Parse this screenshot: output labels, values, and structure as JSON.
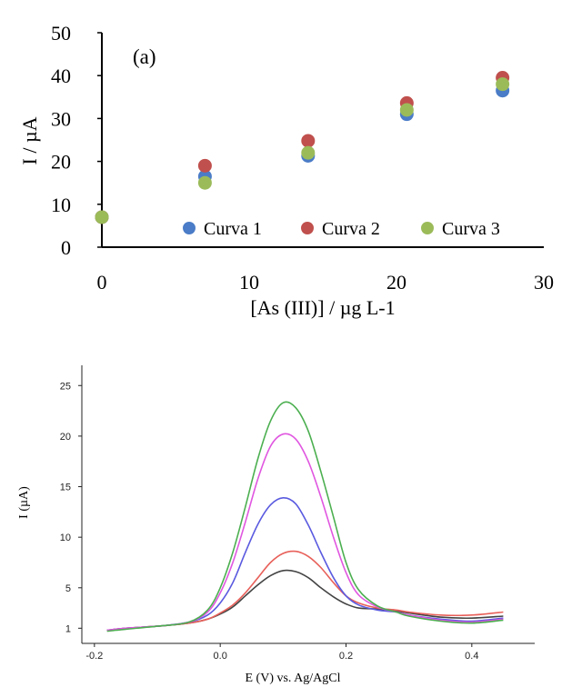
{
  "chart_data": [
    {
      "type": "scatter",
      "panel_label": "(a)",
      "xlabel": "[As (III)] / µg L-1",
      "ylabel": "I / µA",
      "xlim": [
        0,
        30
      ],
      "ylim": [
        0,
        50
      ],
      "x_ticks": [
        "0",
        "10",
        "20",
        "30"
      ],
      "y_ticks": [
        "0",
        "10",
        "20",
        "30",
        "40",
        "50"
      ],
      "legend_position": "bottom-right",
      "x": [
        0,
        7,
        14,
        20.7,
        27.2
      ],
      "series": [
        {
          "name": "Curva 1",
          "color": "#4a7cc7",
          "values": [
            7,
            16.5,
            21.3,
            31,
            36.5
          ]
        },
        {
          "name": "Curva 2",
          "color": "#c0504d",
          "values": [
            7,
            19,
            24.8,
            33.6,
            39.5
          ]
        },
        {
          "name": "Curva 3",
          "color": "#9bbb59",
          "values": [
            7,
            15,
            22,
            32,
            38
          ]
        }
      ]
    },
    {
      "type": "line",
      "xlabel": "E (V) vs. Ag/AgCl",
      "ylabel": "I (µA)",
      "xlim": [
        -0.22,
        0.5
      ],
      "ylim": [
        -0.5,
        27
      ],
      "x_ticks": [
        "-0.2",
        "0.0",
        "0.2",
        "0.4"
      ],
      "y_ticks": [
        "1",
        "5",
        "10",
        "15",
        "20",
        "25"
      ],
      "grid": false,
      "series": [
        {
          "name": "black",
          "color": "#444444",
          "x": [
            -0.18,
            -0.15,
            -0.1,
            -0.05,
            -0.02,
            0.0,
            0.02,
            0.04,
            0.06,
            0.08,
            0.1,
            0.12,
            0.14,
            0.16,
            0.18,
            0.2,
            0.22,
            0.25,
            0.28,
            0.3,
            0.35,
            0.4,
            0.45
          ],
          "values": [
            0.8,
            1.0,
            1.2,
            1.5,
            1.9,
            2.4,
            3.1,
            4.2,
            5.3,
            6.2,
            6.7,
            6.6,
            6.0,
            5.0,
            4.1,
            3.4,
            3.0,
            2.9,
            2.7,
            2.5,
            2.1,
            2.0,
            2.2
          ]
        },
        {
          "name": "red",
          "color": "#e8605a",
          "x": [
            -0.18,
            -0.15,
            -0.1,
            -0.05,
            -0.02,
            0.0,
            0.02,
            0.04,
            0.06,
            0.08,
            0.1,
            0.12,
            0.14,
            0.16,
            0.18,
            0.2,
            0.22,
            0.25,
            0.28,
            0.3,
            0.35,
            0.4,
            0.45
          ],
          "values": [
            0.8,
            1.0,
            1.2,
            1.5,
            1.9,
            2.5,
            3.3,
            4.5,
            6.0,
            7.5,
            8.4,
            8.6,
            8.1,
            7.0,
            5.5,
            4.2,
            3.5,
            3.0,
            2.8,
            2.6,
            2.3,
            2.3,
            2.6
          ]
        },
        {
          "name": "blue",
          "color": "#5a5ae0",
          "x": [
            -0.18,
            -0.15,
            -0.1,
            -0.05,
            -0.02,
            0.0,
            0.02,
            0.04,
            0.06,
            0.08,
            0.1,
            0.12,
            0.14,
            0.16,
            0.18,
            0.2,
            0.22,
            0.25,
            0.28,
            0.3,
            0.35,
            0.4,
            0.45
          ],
          "values": [
            0.8,
            1.0,
            1.2,
            1.6,
            2.3,
            3.5,
            5.5,
            8.5,
            11.3,
            13.2,
            13.9,
            13.3,
            11.2,
            8.5,
            6.0,
            4.2,
            3.3,
            2.8,
            2.6,
            2.3,
            1.9,
            1.7,
            2.0
          ]
        },
        {
          "name": "magenta",
          "color": "#e056e0",
          "x": [
            -0.18,
            -0.15,
            -0.1,
            -0.05,
            -0.02,
            0.0,
            0.02,
            0.04,
            0.06,
            0.08,
            0.1,
            0.12,
            0.14,
            0.16,
            0.18,
            0.2,
            0.22,
            0.25,
            0.28,
            0.3,
            0.35,
            0.4,
            0.45
          ],
          "values": [
            0.8,
            1.0,
            1.2,
            1.6,
            2.6,
            4.5,
            7.5,
            11.5,
            15.8,
            19.0,
            20.2,
            19.7,
            17.5,
            14.0,
            10.0,
            6.5,
            4.3,
            3.1,
            2.6,
            2.3,
            1.8,
            1.6,
            1.9
          ]
        },
        {
          "name": "green",
          "color": "#4caf50",
          "x": [
            -0.18,
            -0.15,
            -0.1,
            -0.05,
            -0.02,
            0.0,
            0.02,
            0.04,
            0.06,
            0.08,
            0.1,
            0.12,
            0.14,
            0.16,
            0.18,
            0.2,
            0.22,
            0.25,
            0.28,
            0.3,
            0.35,
            0.4,
            0.45
          ],
          "values": [
            0.7,
            0.9,
            1.2,
            1.6,
            2.8,
            5.0,
            8.5,
            13.0,
            17.8,
            21.5,
            23.3,
            22.8,
            20.5,
            16.5,
            12.0,
            7.5,
            4.8,
            3.2,
            2.6,
            2.2,
            1.7,
            1.5,
            1.8
          ]
        }
      ]
    }
  ]
}
